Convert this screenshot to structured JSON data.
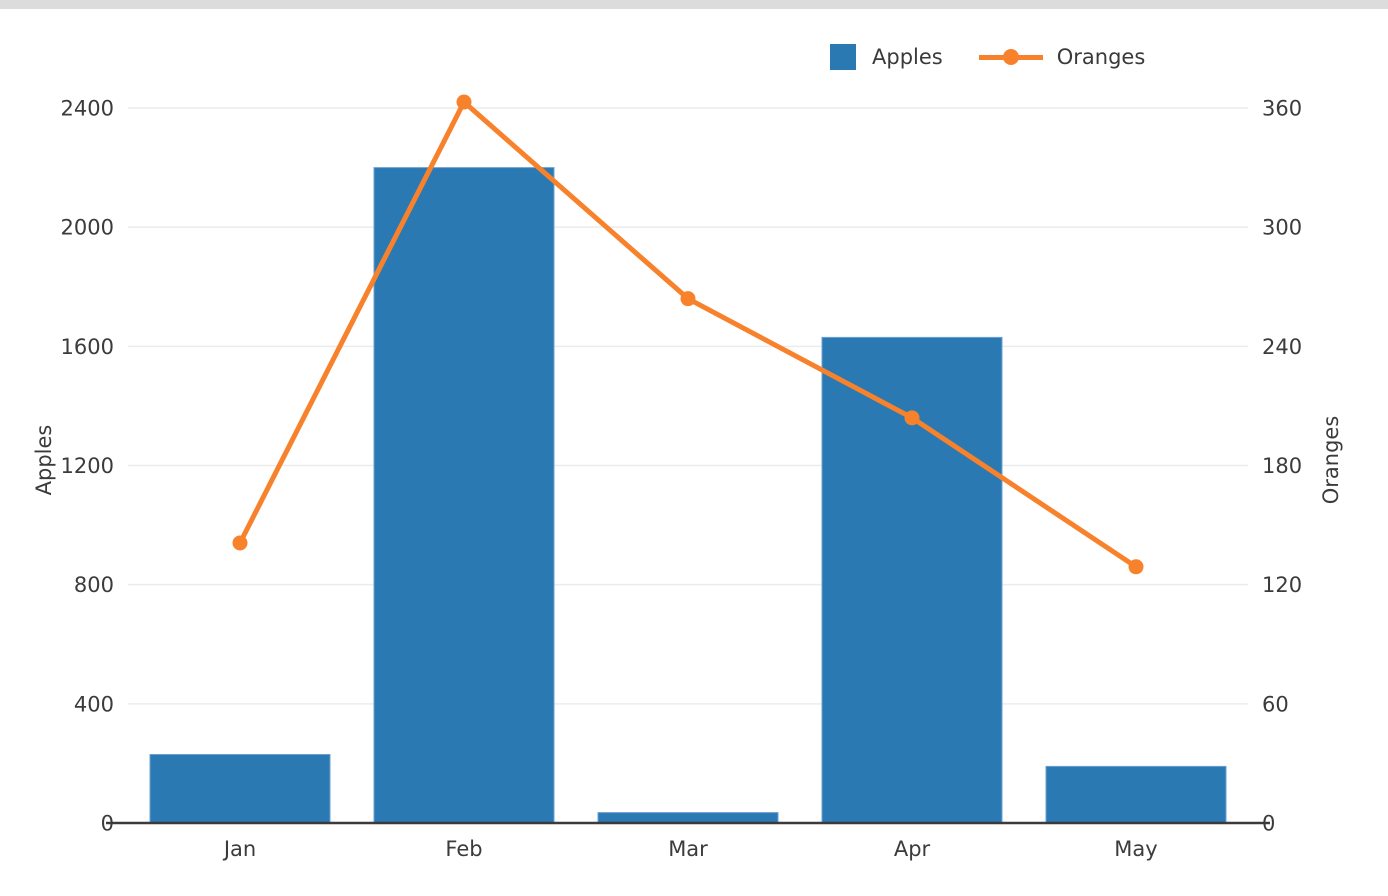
{
  "page": {
    "background": "#ffffff",
    "window_edge_color": "#dcdcdc"
  },
  "chart_data": {
    "type": "bar",
    "subtype": "combo-bar-line-dual-axis",
    "categories": [
      "Jan",
      "Feb",
      "Mar",
      "Apr",
      "May"
    ],
    "series": [
      {
        "name": "Apples",
        "type": "bar",
        "axis": "left",
        "color": "#2b79b3",
        "values": [
          230,
          2200,
          35,
          1630,
          190
        ]
      },
      {
        "name": "Oranges",
        "type": "line",
        "axis": "right",
        "color": "#f8822c",
        "values": [
          141,
          363,
          264,
          204,
          129
        ]
      }
    ],
    "left_axis": {
      "label": "Apples",
      "min": 0,
      "max": 2400,
      "ticks": [
        0,
        400,
        800,
        1200,
        1600,
        2000,
        2400
      ]
    },
    "right_axis": {
      "label": "Oranges",
      "min": 0,
      "max": 360,
      "ticks": [
        0,
        60,
        120,
        180,
        240,
        300,
        360
      ]
    },
    "x_axis": {
      "labels": [
        "Jan",
        "Feb",
        "Mar",
        "Apr",
        "May"
      ]
    },
    "grid": {
      "show": true,
      "color": "#ececec"
    },
    "axis_line_color": "#3a3a3a",
    "tick_label_color": "#3b3b3b",
    "bar_edge_color": "#6aa2d1",
    "legend_position": "top-right",
    "legend_icons": [
      "swatch-icon",
      "line-dot-icon"
    ]
  }
}
